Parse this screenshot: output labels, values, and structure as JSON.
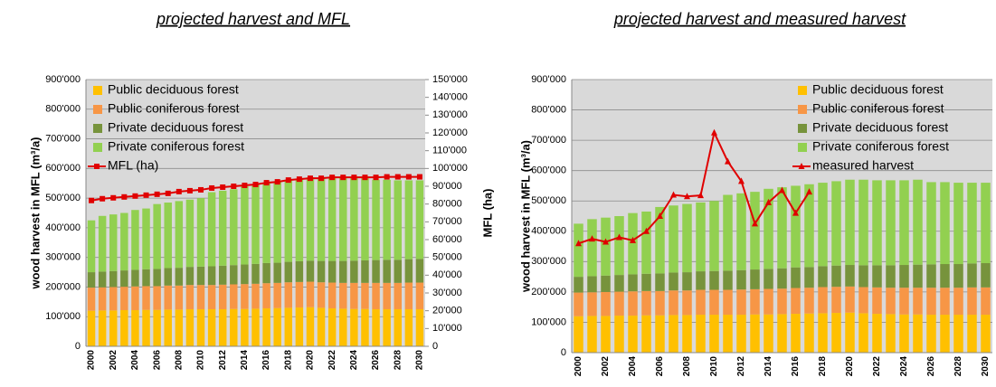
{
  "chart_data": [
    {
      "type": "bar",
      "stacked": true,
      "title": "projected harvest and MFL",
      "y_label": "wood harvest  in MFL (m³/a)",
      "y2_label": "MFL (ha)",
      "legend": "upper left",
      "grid": true,
      "marker": "square",
      "categories": [
        "2000",
        null,
        "2002",
        null,
        "2004",
        null,
        "2006",
        null,
        "2008",
        null,
        "2010",
        null,
        "2012",
        null,
        "2014",
        null,
        "2016",
        null,
        "2018",
        null,
        "2020",
        null,
        "2022",
        null,
        "2024",
        null,
        "2026",
        null,
        "2028",
        null,
        "2030"
      ],
      "ylim": [
        0,
        900000
      ],
      "yticks": [
        0,
        {
          "value": 100000,
          "label": "100'000"
        },
        {
          "value": 200000,
          "label": "200'000"
        },
        {
          "value": 300000,
          "label": "300'000"
        },
        {
          "value": 400000,
          "label": "400'000"
        },
        {
          "value": 500000,
          "label": "500'000"
        },
        {
          "value": 600000,
          "label": "600'000"
        },
        {
          "value": 700000,
          "label": "700'000"
        },
        {
          "value": 800000,
          "label": "800'000"
        },
        {
          "value": 900000,
          "label": "900'000"
        }
      ],
      "y2lim": [
        0,
        150000
      ],
      "y2ticks": [
        0,
        {
          "value": 10000,
          "label": "10'000"
        },
        {
          "value": 20000,
          "label": "20'000"
        },
        {
          "value": 30000,
          "label": "30'000"
        },
        {
          "value": 40000,
          "label": "40'000"
        },
        {
          "value": 50000,
          "label": "50'000"
        },
        {
          "value": 60000,
          "label": "60'000"
        },
        {
          "value": 70000,
          "label": "70'000"
        },
        {
          "value": 80000,
          "label": "80'000"
        },
        {
          "value": 90000,
          "label": "90'000"
        },
        {
          "value": 100000,
          "label": "100'000"
        },
        {
          "value": 110000,
          "label": "110'000"
        },
        {
          "value": 120000,
          "label": "120'000"
        },
        {
          "value": 130000,
          "label": "130'000"
        },
        {
          "value": 140000,
          "label": "140'000"
        },
        {
          "value": 150000,
          "label": "150'000"
        }
      ],
      "series": [
        {
          "name": "Public deciduous forest",
          "color": "#ffc000",
          "values": [
            120000,
            121000,
            121000,
            122000,
            122000,
            123000,
            123000,
            124000,
            124000,
            125000,
            125000,
            125000,
            125000,
            126000,
            126000,
            127000,
            128000,
            129000,
            130000,
            131000,
            132000,
            130000,
            128000,
            127000,
            126000,
            126000,
            125000,
            125000,
            125000,
            125000,
            125000
          ]
        },
        {
          "name": "Public coniferous forest",
          "color": "#f79646",
          "values": [
            78000,
            78000,
            79000,
            79000,
            80000,
            80000,
            80000,
            81000,
            81000,
            82000,
            82000,
            82000,
            83000,
            83000,
            84000,
            84000,
            85000,
            85000,
            86000,
            86000,
            86000,
            86000,
            87000,
            87000,
            88000,
            88000,
            89000,
            89000,
            89000,
            90000,
            90000
          ]
        },
        {
          "name": "Private deciduous forest",
          "color": "#77933c",
          "values": [
            52000,
            53000,
            54000,
            55000,
            56000,
            57000,
            58000,
            59000,
            60000,
            61000,
            62000,
            63000,
            64000,
            65000,
            66000,
            67000,
            68000,
            68000,
            69000,
            70000,
            71000,
            72000,
            73000,
            74000,
            75000,
            76000,
            77000,
            78000,
            78000,
            79000,
            80000
          ]
        },
        {
          "name": "Private coniferous forest",
          "color": "#92d050",
          "values": [
            175000,
            188000,
            191000,
            194000,
            202000,
            205000,
            219000,
            221000,
            225000,
            227000,
            231000,
            250000,
            253000,
            256000,
            264000,
            267000,
            269000,
            273000,
            275000,
            278000,
            281000,
            282000,
            280000,
            280000,
            279000,
            280000,
            271000,
            270000,
            268000,
            266000,
            265000
          ]
        },
        {
          "name": "MFL (ha)",
          "type": "line",
          "axis": "y2",
          "color": "#e00000",
          "values": [
            82000,
            83000,
            83500,
            84000,
            84500,
            85000,
            85500,
            86000,
            87000,
            87500,
            88000,
            89000,
            89500,
            90000,
            90500,
            91000,
            92000,
            92500,
            93500,
            94000,
            94500,
            94500,
            95000,
            95000,
            95000,
            95000,
            95000,
            95300,
            95300,
            95300,
            95300
          ]
        }
      ]
    },
    {
      "type": "bar",
      "stacked": true,
      "title": "projected harvest and measured harvest",
      "y_label": "wood harvest in MFL (m³/a)",
      "legend": "upper right",
      "grid": true,
      "marker": "triangle",
      "categories": [
        "2000",
        null,
        "2002",
        null,
        "2004",
        null,
        "2006",
        null,
        "2008",
        null,
        "2010",
        null,
        "2012",
        null,
        "2014",
        null,
        "2016",
        null,
        "2018",
        null,
        "2020",
        null,
        "2022",
        null,
        "2024",
        null,
        "2026",
        null,
        "2028",
        null,
        "2030"
      ],
      "ylim": [
        0,
        900000
      ],
      "yticks": [
        0,
        {
          "value": 100000,
          "label": "100'000"
        },
        {
          "value": 200000,
          "label": "200'000"
        },
        {
          "value": 300000,
          "label": "300'000"
        },
        {
          "value": 400000,
          "label": "400'000"
        },
        {
          "value": 500000,
          "label": "500'000"
        },
        {
          "value": 600000,
          "label": "600'000"
        },
        {
          "value": 700000,
          "label": "700'000"
        },
        {
          "value": 800000,
          "label": "800'000"
        },
        {
          "value": 900000,
          "label": "900'000"
        }
      ],
      "series": [
        {
          "name": "Public deciduous forest",
          "color": "#ffc000",
          "values": [
            120000,
            121000,
            121000,
            122000,
            122000,
            123000,
            123000,
            124000,
            124000,
            125000,
            125000,
            125000,
            125000,
            126000,
            126000,
            127000,
            128000,
            129000,
            130000,
            131000,
            132000,
            130000,
            128000,
            127000,
            126000,
            126000,
            125000,
            125000,
            125000,
            125000,
            125000
          ]
        },
        {
          "name": "Public coniferous forest",
          "color": "#f79646",
          "values": [
            78000,
            78000,
            79000,
            79000,
            80000,
            80000,
            80000,
            81000,
            81000,
            82000,
            82000,
            82000,
            83000,
            83000,
            84000,
            84000,
            85000,
            85000,
            86000,
            86000,
            86000,
            86000,
            87000,
            87000,
            88000,
            88000,
            89000,
            89000,
            89000,
            90000,
            90000
          ]
        },
        {
          "name": "Private deciduous forest",
          "color": "#77933c",
          "values": [
            52000,
            53000,
            54000,
            55000,
            56000,
            57000,
            58000,
            59000,
            60000,
            61000,
            62000,
            63000,
            64000,
            65000,
            66000,
            67000,
            68000,
            68000,
            69000,
            70000,
            71000,
            72000,
            73000,
            74000,
            75000,
            76000,
            77000,
            78000,
            78000,
            79000,
            80000
          ]
        },
        {
          "name": "Private coniferous forest",
          "color": "#92d050",
          "values": [
            175000,
            188000,
            191000,
            194000,
            202000,
            205000,
            219000,
            221000,
            225000,
            227000,
            231000,
            250000,
            253000,
            256000,
            264000,
            267000,
            269000,
            273000,
            275000,
            278000,
            281000,
            282000,
            280000,
            280000,
            279000,
            280000,
            271000,
            270000,
            268000,
            266000,
            265000
          ]
        },
        {
          "name": "measured harvest",
          "type": "line",
          "color": "#e00000",
          "values": [
            360000,
            375000,
            365000,
            380000,
            370000,
            400000,
            450000,
            520000,
            515000,
            518000,
            725000,
            630000,
            565000,
            425000,
            495000,
            535000,
            460000,
            530000,
            null,
            null,
            null,
            null,
            null,
            null,
            null,
            null,
            null,
            null,
            null,
            null,
            null
          ]
        }
      ]
    }
  ]
}
